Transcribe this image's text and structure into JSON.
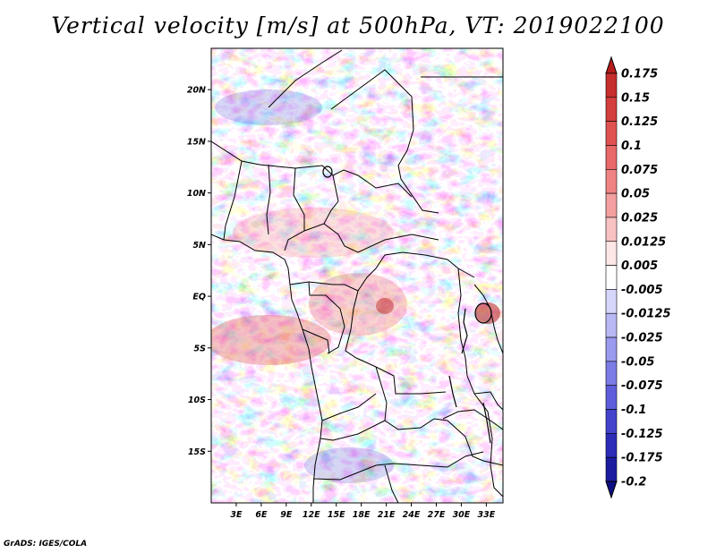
{
  "title": "Vertical velocity [m/s] at 500hPa, VT: 2019022100",
  "footer": "GrADS: IGES/COLA",
  "map": {
    "lon_range": [
      0,
      35
    ],
    "lat_range": [
      -20,
      24
    ],
    "lat_ticks": [
      {
        "label": "20N",
        "value": 20
      },
      {
        "label": "15N",
        "value": 15
      },
      {
        "label": "10N",
        "value": 10
      },
      {
        "label": "5N",
        "value": 5
      },
      {
        "label": "EQ",
        "value": 0
      },
      {
        "label": "5S",
        "value": -5
      },
      {
        "label": "10S",
        "value": -10
      },
      {
        "label": "15S",
        "value": -15
      }
    ],
    "lon_ticks": [
      {
        "label": "3E",
        "value": 3
      },
      {
        "label": "6E",
        "value": 6
      },
      {
        "label": "9E",
        "value": 9
      },
      {
        "label": "12E",
        "value": 12
      },
      {
        "label": "15E",
        "value": 15
      },
      {
        "label": "18E",
        "value": 18
      },
      {
        "label": "21E",
        "value": 21
      },
      {
        "label": "24E",
        "value": 24
      },
      {
        "label": "27E",
        "value": 27
      },
      {
        "label": "30E",
        "value": 30
      },
      {
        "label": "33E",
        "value": 33
      }
    ]
  },
  "colorbar": {
    "labels": [
      "0.175",
      "0.15",
      "0.125",
      "0.1",
      "0.075",
      "0.05",
      "0.025",
      "0.0125",
      "0.005",
      "-0.005",
      "-0.0125",
      "-0.025",
      "-0.05",
      "-0.075",
      "-0.1",
      "-0.125",
      "-0.175",
      "-0.2"
    ],
    "colors": [
      "#b41c1c",
      "#c62d2d",
      "#d43e3e",
      "#e05252",
      "#e96868",
      "#ef8383",
      "#f4a0a0",
      "#f8c2c2",
      "#fde6e6",
      "#ffffff",
      "#d6d6fa",
      "#b8b8f4",
      "#9a9aee",
      "#7c7ce6",
      "#5e5edc",
      "#4343cc",
      "#2c2cb8",
      "#1c1ca0",
      "#0e0e82"
    ]
  }
}
